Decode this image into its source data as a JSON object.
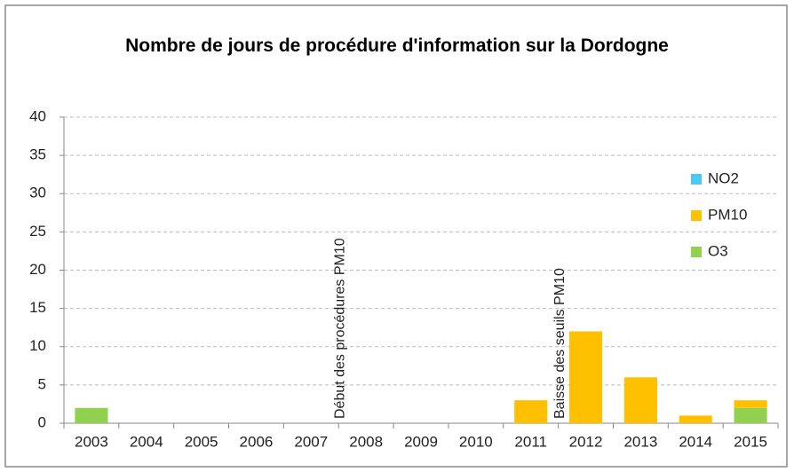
{
  "chart_data": {
    "type": "bar",
    "stacked": true,
    "title": "Nombre de jours de procédure d'information sur la Dordogne",
    "categories": [
      "2003",
      "2004",
      "2005",
      "2006",
      "2007",
      "2008",
      "2009",
      "2010",
      "2011",
      "2012",
      "2013",
      "2014",
      "2015"
    ],
    "series": [
      {
        "name": "NO2",
        "color": "#4fc8f0",
        "values": [
          0,
          0,
          0,
          0,
          0,
          0,
          0,
          0,
          0,
          0,
          0,
          0,
          0
        ]
      },
      {
        "name": "PM10",
        "color": "#ffc000",
        "values": [
          0,
          0,
          0,
          0,
          0,
          0,
          0,
          0,
          3,
          12,
          6,
          1,
          1
        ]
      },
      {
        "name": "O3",
        "color": "#92d050",
        "values": [
          2,
          0,
          0,
          0,
          0,
          0,
          0,
          0,
          0,
          0,
          0,
          0,
          2
        ]
      }
    ],
    "annotations": [
      "Début des procédures PM10",
      "Baisse des seuils PM10"
    ],
    "ylim": [
      0,
      40
    ],
    "yticks": [
      0,
      5,
      10,
      15,
      20,
      25,
      30,
      35,
      40
    ],
    "grid": true,
    "legend": "right"
  }
}
